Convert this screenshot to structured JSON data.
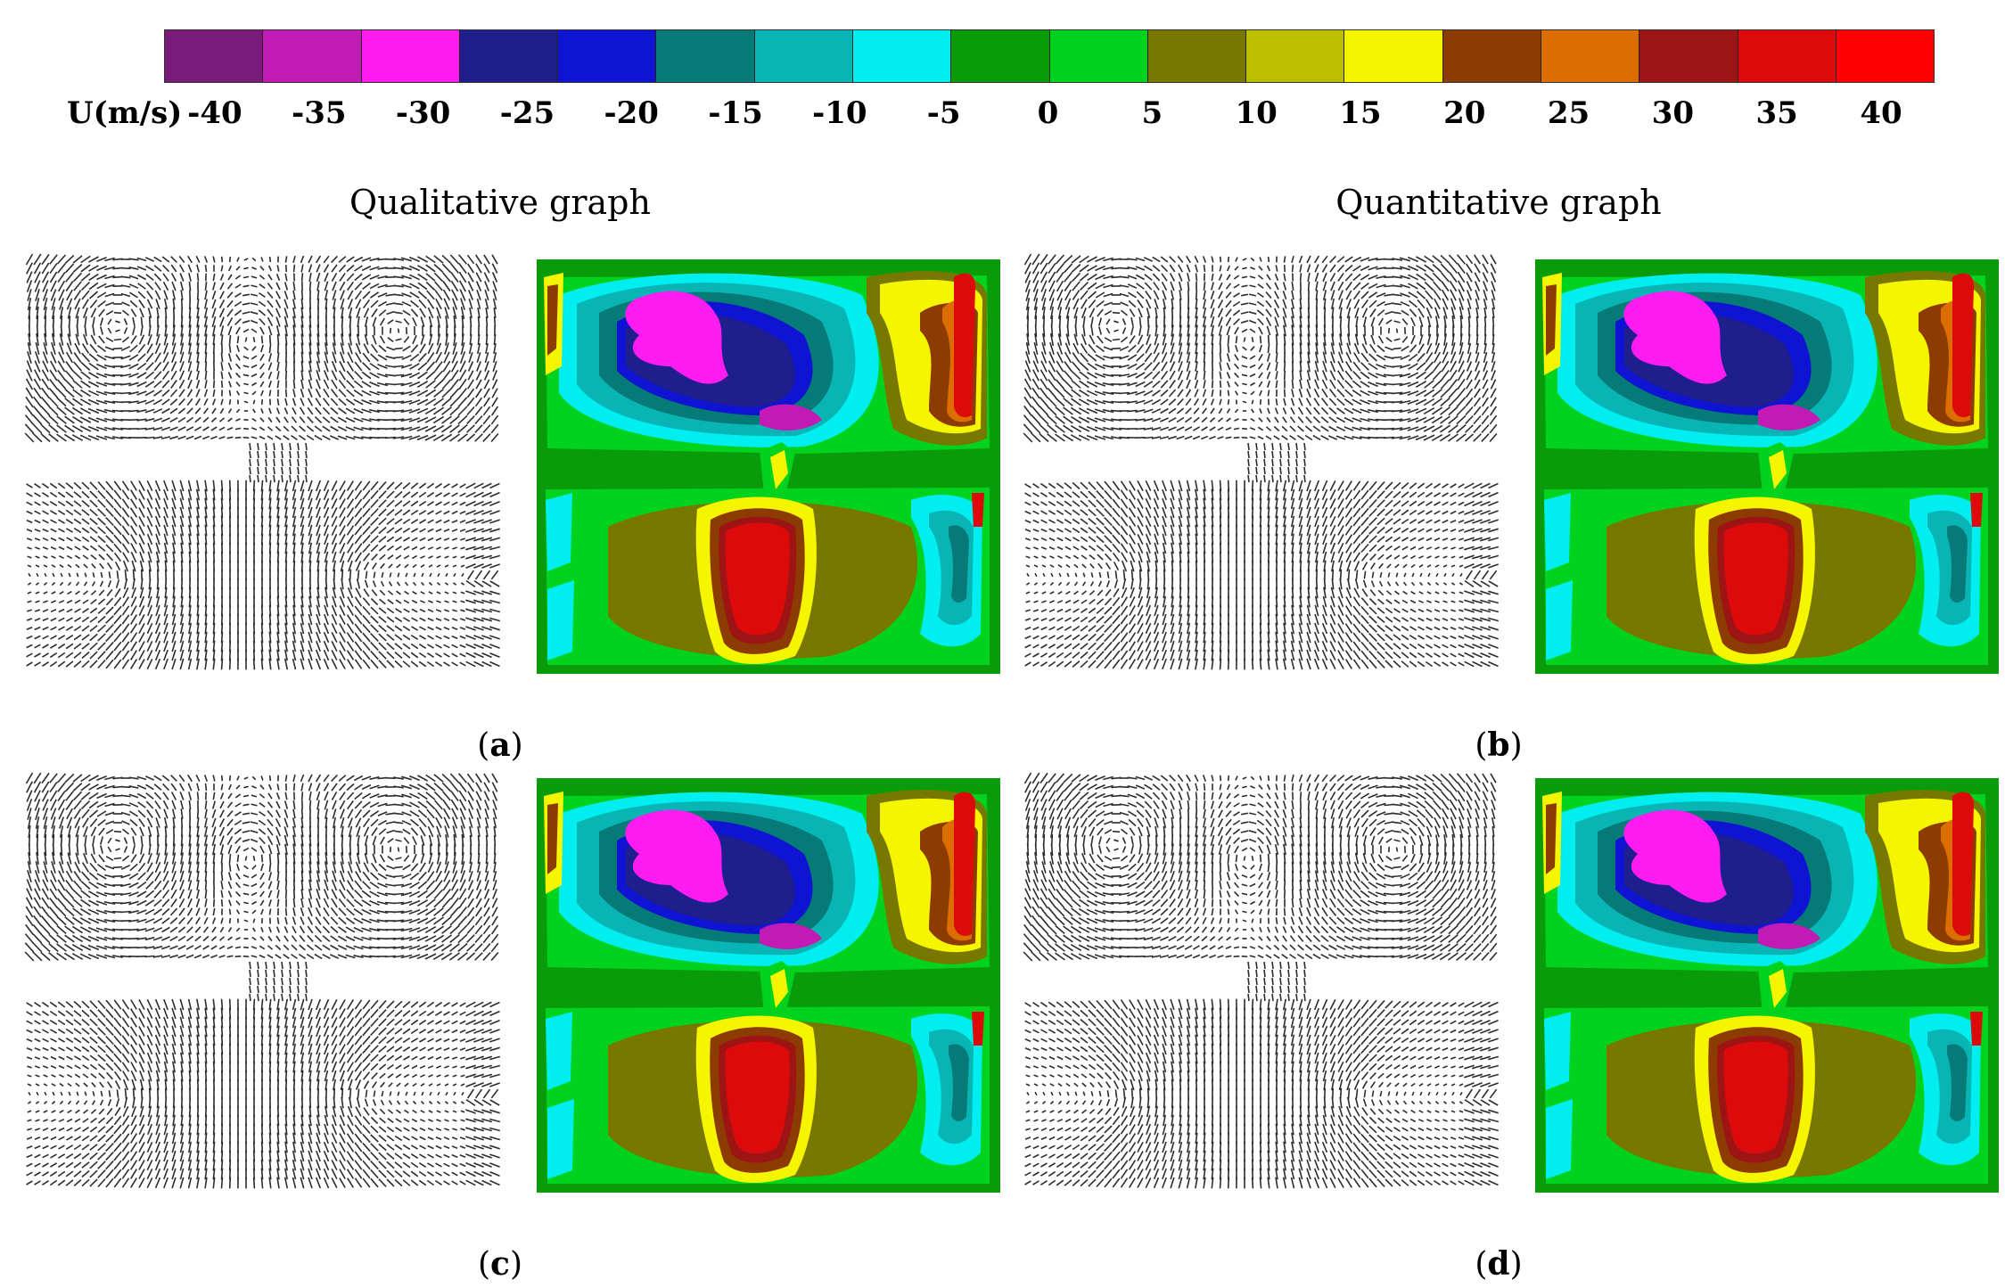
{
  "colorbar": {
    "unit_label": "U(m/s)",
    "tick_labels": [
      "-40",
      "-35",
      "-30",
      "-25",
      "-20",
      "-15",
      "-10",
      "-5",
      "0",
      "5",
      "10",
      "15",
      "20",
      "25",
      "30",
      "35",
      "40"
    ],
    "colors": [
      "#7a1b7a",
      "#c21bb5",
      "#ff1cf0",
      "#1e1e8c",
      "#0f14d2",
      "#067a76",
      "#08b4b4",
      "#00eef0",
      "#0a9b0a",
      "#00d21e",
      "#787800",
      "#bebe00",
      "#f5f500",
      "#8c3c00",
      "#dc6e00",
      "#9c1414",
      "#dc0a0a",
      "#ff0000"
    ]
  },
  "headings": {
    "left": "Qualitative graph",
    "right": "Quantitative graph"
  },
  "panels": [
    {
      "open": "(",
      "letter": "a",
      "close": ")"
    },
    {
      "open": "(",
      "letter": "b",
      "close": ")"
    },
    {
      "open": "(",
      "letter": "c",
      "close": ")"
    },
    {
      "open": "(",
      "letter": "d",
      "close": ")"
    }
  ],
  "icons": [
    "velocity-vector-field-icon",
    "velocity-contour-map-icon"
  ]
}
